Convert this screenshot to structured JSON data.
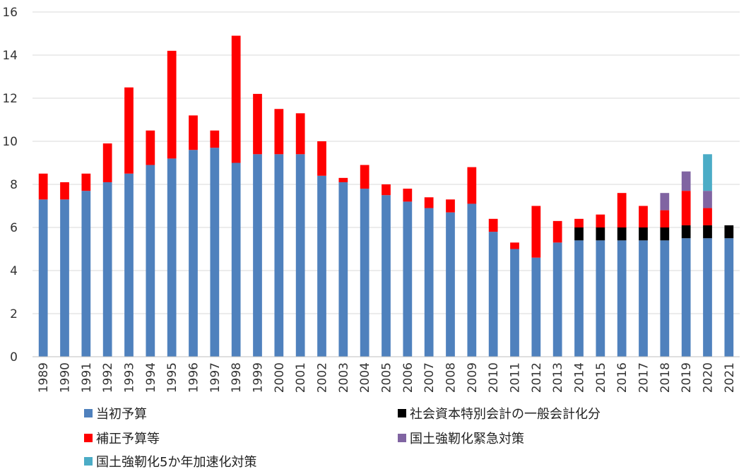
{
  "chart_data": {
    "type": "bar",
    "stacked": true,
    "categories": [
      "1989",
      "1990",
      "1991",
      "1992",
      "1993",
      "1994",
      "1995",
      "1996",
      "1997",
      "1998",
      "1999",
      "2000",
      "2001",
      "2002",
      "2003",
      "2004",
      "2005",
      "2006",
      "2007",
      "2008",
      "2009",
      "2010",
      "2011",
      "2012",
      "2013",
      "2014",
      "2015",
      "2016",
      "2017",
      "2018",
      "2019",
      "2020",
      "2021"
    ],
    "series": [
      {
        "name": "当初予算",
        "color": "#4F81BD",
        "values": [
          7.3,
          7.3,
          7.7,
          8.1,
          8.5,
          8.9,
          9.2,
          9.6,
          9.7,
          9.0,
          9.4,
          9.4,
          9.4,
          8.4,
          8.1,
          7.8,
          7.5,
          7.2,
          6.9,
          6.7,
          7.1,
          5.8,
          5.0,
          4.6,
          5.3,
          5.4,
          5.4,
          5.4,
          5.4,
          5.4,
          5.5,
          5.5,
          5.5
        ]
      },
      {
        "name": "社会資本特別会計の一般会計化分",
        "color": "#000000",
        "values": [
          0,
          0,
          0,
          0,
          0,
          0,
          0,
          0,
          0,
          0,
          0,
          0,
          0,
          0,
          0,
          0,
          0,
          0,
          0,
          0,
          0,
          0,
          0,
          0,
          0,
          0.6,
          0.6,
          0.6,
          0.6,
          0.6,
          0.6,
          0.6,
          0.6
        ]
      },
      {
        "name": "補正予算等",
        "color": "#FF0000",
        "values": [
          1.2,
          0.8,
          0.8,
          1.8,
          4.0,
          1.6,
          5.0,
          1.6,
          0.8,
          5.9,
          2.8,
          2.1,
          1.9,
          1.6,
          0.2,
          1.1,
          0.5,
          0.6,
          0.5,
          0.6,
          1.7,
          0.6,
          0.3,
          2.4,
          1.0,
          0.4,
          0.6,
          1.6,
          1.0,
          0.8,
          1.6,
          0.8,
          0
        ]
      },
      {
        "name": "国土強靭化緊急対策",
        "color": "#8064A2",
        "values": [
          0,
          0,
          0,
          0,
          0,
          0,
          0,
          0,
          0,
          0,
          0,
          0,
          0,
          0,
          0,
          0,
          0,
          0,
          0,
          0,
          0,
          0,
          0,
          0,
          0,
          0,
          0,
          0,
          0,
          0.8,
          0.9,
          0.8,
          0
        ]
      },
      {
        "name": "国土強靭化5か年加速化対策",
        "color": "#4BACC6",
        "values": [
          0,
          0,
          0,
          0,
          0,
          0,
          0,
          0,
          0,
          0,
          0,
          0,
          0,
          0,
          0,
          0,
          0,
          0,
          0,
          0,
          0,
          0,
          0,
          0,
          0,
          0,
          0,
          0,
          0,
          0,
          0,
          1.7,
          0
        ]
      }
    ],
    "ylim": [
      0,
      16
    ],
    "yticks": [
      "0",
      "2",
      "4",
      "6",
      "8",
      "10",
      "12",
      "14",
      "16"
    ],
    "grid": true,
    "legend_position": "bottom",
    "legend_order": [
      0,
      1,
      2,
      3,
      4
    ]
  }
}
